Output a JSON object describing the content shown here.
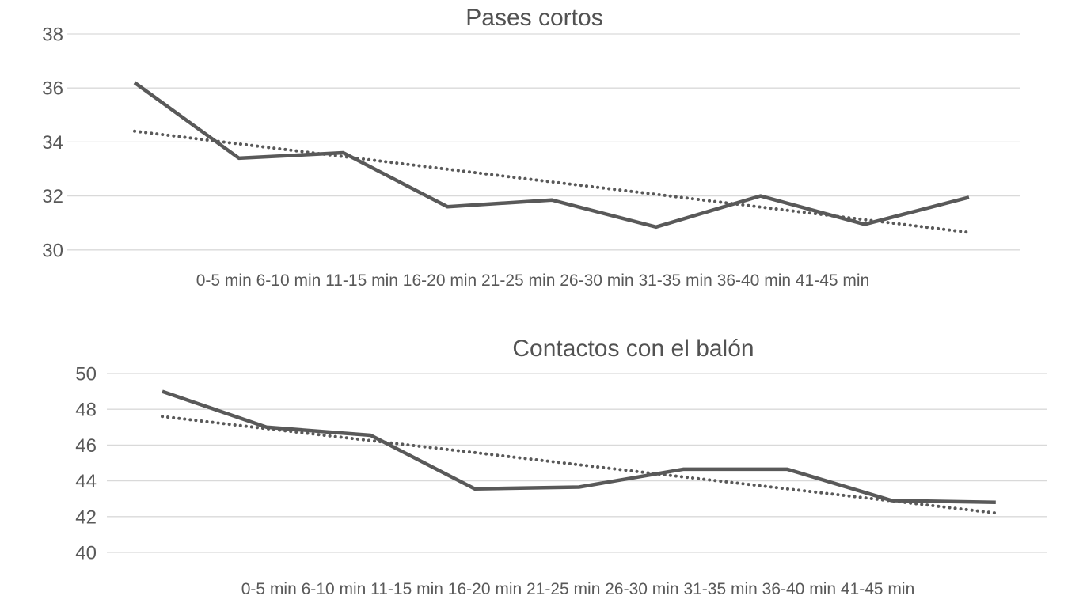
{
  "page": {
    "background": "#ffffff"
  },
  "chart_data": [
    {
      "type": "line",
      "title": "Pases cortos",
      "categories": [
        "0-5 min",
        "6-10 min",
        "11-15 min",
        "16-20 min",
        "21-25 min",
        "26-30 min",
        "31-35 min",
        "36-40 min",
        "41-45 min"
      ],
      "x_labels_row": "0-5 min 6-10 min 11-15 min 16-20 min 21-25 min 26-30 min 31-35 min 36-40 min 41-45 min",
      "series": [
        {
          "name": "data",
          "style": "solid",
          "values": [
            36.2,
            33.4,
            33.6,
            31.6,
            31.85,
            30.85,
            32.0,
            30.95,
            31.95
          ]
        },
        {
          "name": "trendline",
          "style": "dotted",
          "values": [
            34.4,
            33.93,
            33.46,
            32.99,
            32.52,
            32.06,
            31.59,
            31.12,
            30.65
          ]
        }
      ],
      "ylim": [
        30,
        38
      ],
      "yticks": [
        38,
        36,
        34,
        32,
        30
      ],
      "grid": true,
      "legend": "none",
      "line_color": "#595959",
      "grid_color": "#d9d9d9",
      "text_color": "#595959"
    },
    {
      "type": "line",
      "title": "Contactos con el balón",
      "categories": [
        "0-5 min",
        "6-10 min",
        "11-15 min",
        "16-20 min",
        "21-25 min",
        "26-30 min",
        "31-35 min",
        "36-40 min",
        "41-45 min"
      ],
      "x_labels_row": "0-5 min 6-10 min 11-15 min 16-20 min 21-25 min 26-30 min 31-35 min 36-40 min 41-45 min",
      "series": [
        {
          "name": "data",
          "style": "solid",
          "values": [
            49.0,
            47.0,
            46.55,
            43.55,
            43.65,
            44.65,
            44.65,
            42.9,
            42.8
          ]
        },
        {
          "name": "trendline",
          "style": "dotted",
          "values": [
            47.6,
            46.92,
            46.25,
            45.58,
            44.9,
            44.22,
            43.55,
            42.88,
            42.2
          ]
        }
      ],
      "ylim": [
        40,
        50
      ],
      "yticks": [
        50,
        48,
        46,
        44,
        42,
        40
      ],
      "grid": true,
      "legend": "none",
      "line_color": "#595959",
      "grid_color": "#d9d9d9",
      "text_color": "#595959"
    }
  ]
}
